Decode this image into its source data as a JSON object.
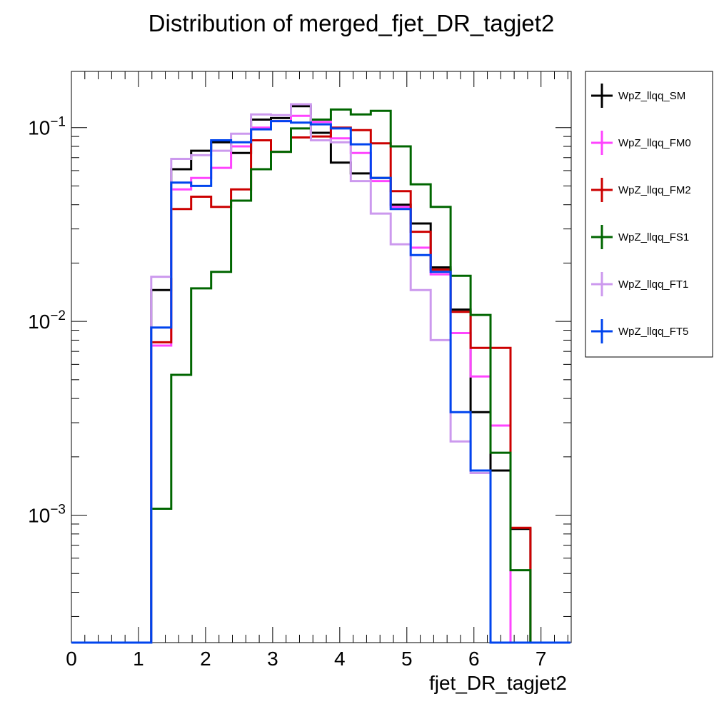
{
  "chart_data": {
    "type": "histogram-step",
    "title": "Distribution of merged_fjet_DR_tagjet2",
    "xlabel": "fjet_DR_tagjet2",
    "ylabel": "",
    "xlim": [
      0,
      7.45
    ],
    "ylim": [
      0.00022,
      0.195
    ],
    "yscale": "log",
    "grid": false,
    "legend_position": "right",
    "x_tick_labels": [
      "0",
      "1",
      "2",
      "3",
      "4",
      "5",
      "6",
      "7"
    ],
    "y_tick_labels": [
      {
        "base": "10",
        "exp": "−1",
        "value": 0.1
      },
      {
        "base": "10",
        "exp": "−2",
        "value": 0.01
      },
      {
        "base": "10",
        "exp": "−3",
        "value": 0.001
      }
    ],
    "bin_edges": [
      0.0,
      0.2975,
      0.595,
      0.8925,
      1.19,
      1.4875,
      1.785,
      2.0825,
      2.38,
      2.6775,
      2.975,
      3.2725,
      3.57,
      3.8675,
      4.165,
      4.4625,
      4.76,
      5.0575,
      5.355,
      5.6525,
      5.95,
      6.2475,
      6.545,
      6.8425,
      7.14,
      7.4375
    ],
    "series": [
      {
        "name": "WpZ_llqq_SM",
        "color": "#000000",
        "values": [
          0,
          0,
          0,
          0,
          0.0145,
          0.061,
          0.076,
          0.084,
          0.074,
          0.11,
          0.112,
          0.129,
          0.094,
          0.066,
          0.058,
          0.055,
          0.04,
          0.032,
          0.019,
          0.0115,
          0.0034,
          0.0017,
          0.00085,
          0,
          0
        ]
      },
      {
        "name": "WpZ_llqq_FM0",
        "color": "#ff44ff",
        "values": [
          0,
          0,
          0,
          0,
          0.0075,
          0.048,
          0.055,
          0.062,
          0.08,
          0.1,
          0.108,
          0.115,
          0.107,
          0.088,
          0.074,
          0.053,
          0.039,
          0.024,
          0.0175,
          0.0087,
          0.0052,
          0.0029,
          0,
          0,
          0
        ]
      },
      {
        "name": "WpZ_llqq_FM2",
        "color": "#cc0000",
        "values": [
          0,
          0,
          0,
          0,
          0.0078,
          0.038,
          0.044,
          0.039,
          0.048,
          0.086,
          0.075,
          0.089,
          0.09,
          0.1,
          0.097,
          0.083,
          0.047,
          0.029,
          0.0185,
          0.0112,
          0.0073,
          0.0073,
          0.00086,
          0,
          0
        ]
      },
      {
        "name": "WpZ_llqq_FS1",
        "color": "#006600",
        "values": [
          0,
          0,
          0,
          0,
          0.00108,
          0.0053,
          0.0148,
          0.018,
          0.042,
          0.061,
          0.075,
          0.099,
          0.11,
          0.124,
          0.117,
          0.122,
          0.08,
          0.051,
          0.039,
          0.0172,
          0.0108,
          0.0021,
          0.00052,
          0,
          0
        ]
      },
      {
        "name": "WpZ_llqq_FT1",
        "color": "#cc99ee",
        "values": [
          0,
          0,
          0,
          0,
          0.017,
          0.069,
          0.072,
          0.076,
          0.093,
          0.117,
          0.116,
          0.132,
          0.086,
          0.084,
          0.053,
          0.036,
          0.025,
          0.0145,
          0.008,
          0.0024,
          0.00165,
          0,
          0,
          0,
          0
        ]
      },
      {
        "name": "WpZ_llqq_FT5",
        "color": "#0044ee",
        "values": [
          0,
          0,
          0,
          0,
          0.0093,
          0.052,
          0.05,
          0.086,
          0.084,
          0.098,
          0.108,
          0.106,
          0.104,
          0.099,
          0.082,
          0.055,
          0.038,
          0.022,
          0.018,
          0.0034,
          0.0017,
          0,
          0,
          0,
          0
        ]
      }
    ]
  }
}
